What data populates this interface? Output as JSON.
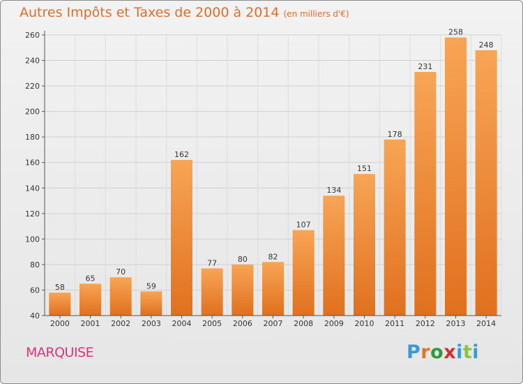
{
  "header": {
    "title": "Autres Impôts et Taxes de 2000 à 2014",
    "unit": "(en milliers d'€)"
  },
  "footer": {
    "city": "MARQUISE",
    "logo_letters": [
      "P",
      "r",
      "o",
      "x",
      "i",
      "t",
      "i"
    ],
    "logo_colors": [
      "#3a9ad9",
      "#e8731f",
      "#2f9a3a",
      "#d62d2d",
      "#3a9ad9",
      "#8bc53f",
      "#3a9ad9"
    ]
  },
  "colors": {
    "bar_light": "#f7a555",
    "bar_dark": "#e0701e",
    "title": "#e06d2b",
    "city": "#d9357c"
  },
  "chart_data": {
    "type": "bar",
    "categories": [
      "2000",
      "2001",
      "2002",
      "2003",
      "2004",
      "2005",
      "2006",
      "2007",
      "2008",
      "2009",
      "2010",
      "2011",
      "2012",
      "2013",
      "2014"
    ],
    "values": [
      58,
      65,
      70,
      59,
      162,
      77,
      80,
      82,
      107,
      134,
      151,
      178,
      231,
      258,
      248
    ],
    "title": "Autres Impôts et Taxes de 2000 à 2014",
    "xlabel": "",
    "ylabel": "",
    "ylim": [
      40,
      260
    ],
    "yticks": [
      40,
      60,
      80,
      100,
      120,
      140,
      160,
      180,
      200,
      220,
      240,
      260
    ],
    "grid": true
  }
}
